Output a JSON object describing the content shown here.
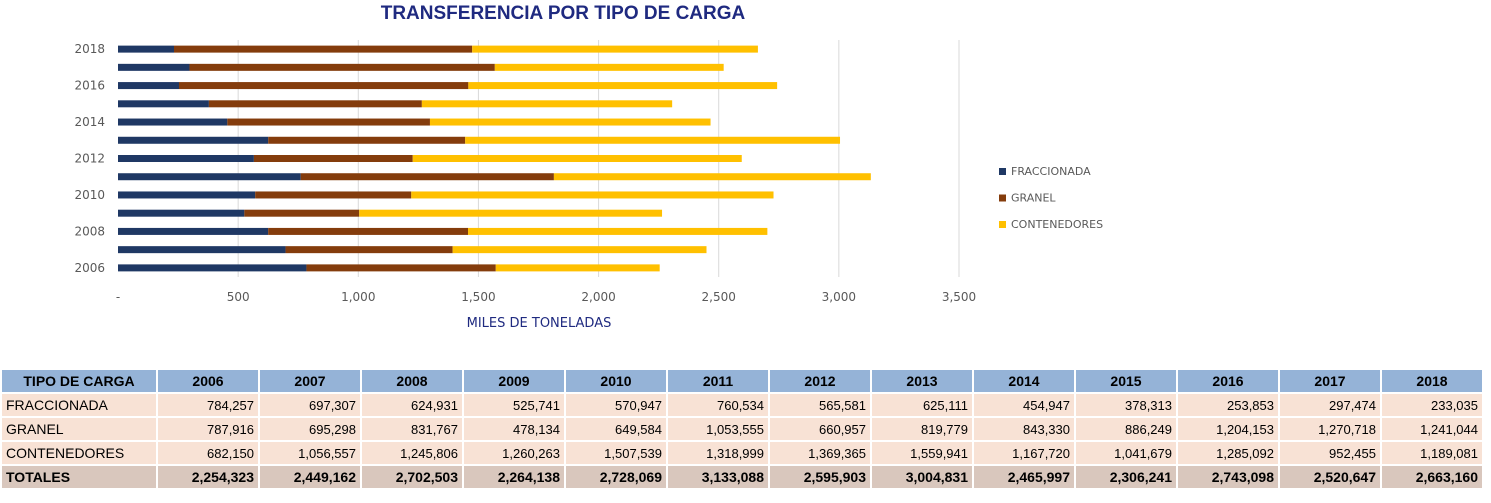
{
  "chart_data": {
    "type": "bar",
    "orientation": "horizontal",
    "stacked": true,
    "title": "TRANSFERENCIA POR TIPO DE CARGA",
    "xlabel": "MILES DE TONELADAS",
    "ylabel": "",
    "categories": [
      "2006",
      "2007",
      "2008",
      "2009",
      "2010",
      "2011",
      "2012",
      "2013",
      "2014",
      "2015",
      "2016",
      "2017",
      "2018"
    ],
    "y_tick_labels": [
      "2006",
      "2008",
      "2010",
      "2012",
      "2014",
      "2016",
      "2018"
    ],
    "x_ticks": [
      {
        "value": 0,
        "label": "-"
      },
      {
        "value": 500,
        "label": "500"
      },
      {
        "value": 1000,
        "label": "1,000"
      },
      {
        "value": 1500,
        "label": "1,500"
      },
      {
        "value": 2000,
        "label": "2,000"
      },
      {
        "value": 2500,
        "label": "2,500"
      },
      {
        "value": 3000,
        "label": "3,000"
      },
      {
        "value": 3500,
        "label": "3,500"
      }
    ],
    "xlim": [
      0,
      3500
    ],
    "grid": "vertical",
    "legend_position": "right",
    "series": [
      {
        "name": "FRACCIONADA",
        "color": "#1f3864",
        "values": [
          784.257,
          697.307,
          624.931,
          525.741,
          570.947,
          760.534,
          565.581,
          625.111,
          454.947,
          378.313,
          253.853,
          297.474,
          233.035
        ]
      },
      {
        "name": "GRANEL",
        "color": "#843c0c",
        "values": [
          787.916,
          695.298,
          831.767,
          478.134,
          649.584,
          1053.555,
          660.957,
          819.779,
          843.33,
          886.249,
          1204.153,
          1270.718,
          1241.044
        ]
      },
      {
        "name": "CONTENEDORES",
        "color": "#ffc000",
        "values": [
          682.15,
          1056.557,
          1245.806,
          1260.263,
          1507.539,
          1318.999,
          1369.365,
          1559.941,
          1167.72,
          1041.679,
          1285.092,
          952.455,
          1189.081
        ]
      }
    ]
  },
  "table": {
    "header_label": "TIPO DE CARGA",
    "years": [
      "2006",
      "2007",
      "2008",
      "2009",
      "2010",
      "2011",
      "2012",
      "2013",
      "2014",
      "2015",
      "2016",
      "2017",
      "2018"
    ],
    "rows": [
      {
        "label": "FRACCIONADA",
        "values": [
          "784,257",
          "697,307",
          "624,931",
          "525,741",
          "570,947",
          "760,534",
          "565,581",
          "625,111",
          "454,947",
          "378,313",
          "253,853",
          "297,474",
          "233,035"
        ]
      },
      {
        "label": "GRANEL",
        "values": [
          "787,916",
          "695,298",
          "831,767",
          "478,134",
          "649,584",
          "1,053,555",
          "660,957",
          "819,779",
          "843,330",
          "886,249",
          "1,204,153",
          "1,270,718",
          "1,241,044"
        ]
      },
      {
        "label": "CONTENEDORES",
        "values": [
          "682,150",
          "1,056,557",
          "1,245,806",
          "1,260,263",
          "1,507,539",
          "1,318,999",
          "1,369,365",
          "1,559,941",
          "1,167,720",
          "1,041,679",
          "1,285,092",
          "952,455",
          "1,189,081"
        ]
      }
    ],
    "totals": {
      "label": "TOTALES",
      "values": [
        "2,254,323",
        "2,449,162",
        "2,702,503",
        "2,264,138",
        "2,728,069",
        "3,133,088",
        "2,595,903",
        "3,004,831",
        "2,465,997",
        "2,306,241",
        "2,743,098",
        "2,520,647",
        "2,663,160"
      ]
    }
  }
}
